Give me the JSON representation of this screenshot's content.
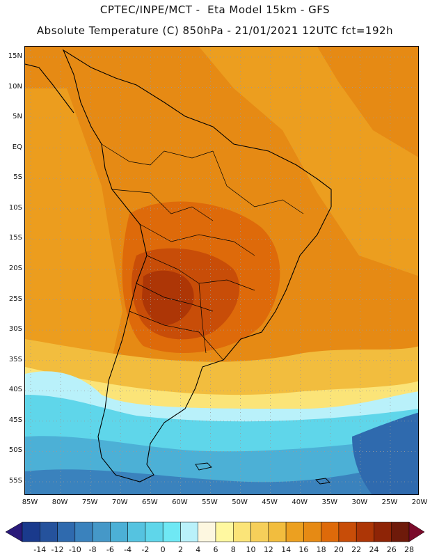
{
  "header": {
    "line1": "CPTEC/INPE/MCT -  Eta Model 15km - GFS",
    "line2": "Absolute Temperature (C) 850hPa - 21/01/2021 12UTC fct=192h"
  },
  "map": {
    "lat_labels": [
      "15N",
      "10N",
      "5N",
      "EQ",
      "5S",
      "10S",
      "15S",
      "20S",
      "25S",
      "30S",
      "35S",
      "40S",
      "45S",
      "50S",
      "55S"
    ],
    "lat_values": [
      15,
      10,
      5,
      0,
      -5,
      -10,
      -15,
      -20,
      -25,
      -30,
      -35,
      -40,
      -45,
      -50,
      -55
    ],
    "lon_labels": [
      "85W",
      "80W",
      "75W",
      "70W",
      "65W",
      "60W",
      "55W",
      "50W",
      "45W",
      "40W",
      "35W",
      "30W",
      "25W",
      "20W"
    ],
    "lon_values": [
      -85,
      -80,
      -75,
      -70,
      -65,
      -60,
      -55,
      -50,
      -45,
      -40,
      -35,
      -30,
      -25,
      -20
    ]
  },
  "colorbar": {
    "labels": [
      "-14",
      "-12",
      "-10",
      "-8",
      "-6",
      "-4",
      "-2",
      "0",
      "2",
      "4",
      "6",
      "8",
      "10",
      "12",
      "14",
      "16",
      "18",
      "20",
      "22",
      "24",
      "26",
      "28"
    ],
    "colors": [
      "#1a3a8c",
      "#25529c",
      "#2f6aae",
      "#3a82bd",
      "#4598c8",
      "#4cb0d6",
      "#55c3e0",
      "#5fd6ea",
      "#6fe8f4",
      "#b9f1fa",
      "#fdf7e0",
      "#fff8a0",
      "#fbe478",
      "#f6cf5a",
      "#f2bd3e",
      "#eca020",
      "#e68a14",
      "#de6a0a",
      "#c84d08",
      "#ad3606",
      "#8e2406",
      "#6e1a0a"
    ],
    "low_arrow_color": "#2a1a7a",
    "high_arrow_color": "#7a0a2a"
  },
  "background_colors": {
    "frame_border": "#000000",
    "grid_lines": "#9a9a9a",
    "coastline": "#000000"
  }
}
